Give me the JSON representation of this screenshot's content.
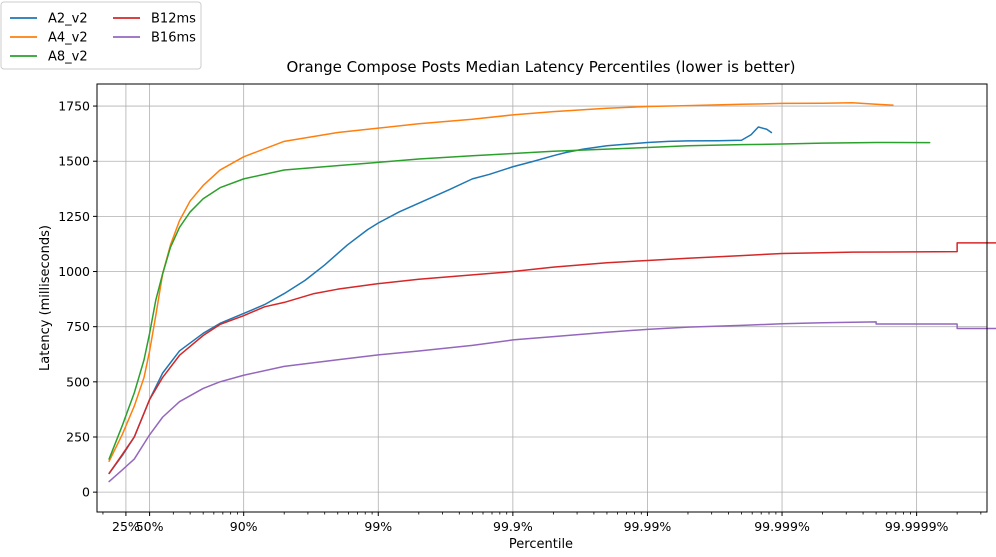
{
  "chart_data": {
    "type": "line",
    "title": "Orange Compose Posts Median Latency Percentiles (lower is better)",
    "xlabel": "Percentile",
    "ylabel": "Latency (milliseconds)",
    "x_scale": "log-of-inverse-percentile",
    "xlim_percentile": [
      -23,
      99.99997
    ],
    "ylim": [
      -90,
      1850
    ],
    "grid": true,
    "legend_position": "above-top-left",
    "legend_columns": 2,
    "x_ticks": [
      {
        "value": 25,
        "label": "25%"
      },
      {
        "value": 50,
        "label": "50%"
      },
      {
        "value": 90,
        "label": "90%"
      },
      {
        "value": 99,
        "label": "99%"
      },
      {
        "value": 99.9,
        "label": "99.9%"
      },
      {
        "value": 99.99,
        "label": "99.99%"
      },
      {
        "value": 99.999,
        "label": "99.999%"
      },
      {
        "value": 99.9999,
        "label": "99.9999%"
      }
    ],
    "y_ticks": [
      0,
      250,
      500,
      750,
      1000,
      1250,
      1500,
      1750
    ],
    "series": [
      {
        "name": "A2_v2",
        "color": "#1f77b4",
        "points": [
          [
            0,
            85
          ],
          [
            20,
            165
          ],
          [
            35,
            250
          ],
          [
            50,
            420
          ],
          [
            60,
            540
          ],
          [
            70,
            640
          ],
          [
            80,
            720
          ],
          [
            85,
            765
          ],
          [
            90,
            810
          ],
          [
            93,
            850
          ],
          [
            95,
            900
          ],
          [
            96.5,
            960
          ],
          [
            97.5,
            1030
          ],
          [
            98.3,
            1120
          ],
          [
            98.8,
            1190
          ],
          [
            99,
            1220
          ],
          [
            99.3,
            1270
          ],
          [
            99.5,
            1310
          ],
          [
            99.7,
            1370
          ],
          [
            99.8,
            1420
          ],
          [
            99.85,
            1440
          ],
          [
            99.9,
            1475
          ],
          [
            99.93,
            1500
          ],
          [
            99.95,
            1525
          ],
          [
            99.96,
            1540
          ],
          [
            99.97,
            1555
          ],
          [
            99.98,
            1570
          ],
          [
            99.99,
            1585
          ],
          [
            99.993,
            1590
          ],
          [
            99.995,
            1592
          ],
          [
            99.997,
            1593
          ],
          [
            99.998,
            1595
          ],
          [
            99.9983,
            1620
          ],
          [
            99.9985,
            1655
          ],
          [
            99.9987,
            1645
          ],
          [
            99.9988,
            1630
          ]
        ]
      },
      {
        "name": "A4_v2",
        "color": "#ff7f0e",
        "points": [
          [
            0,
            140
          ],
          [
            20,
            260
          ],
          [
            35,
            390
          ],
          [
            45,
            520
          ],
          [
            50,
            640
          ],
          [
            55,
            800
          ],
          [
            60,
            990
          ],
          [
            65,
            1120
          ],
          [
            70,
            1230
          ],
          [
            75,
            1320
          ],
          [
            80,
            1390
          ],
          [
            85,
            1460
          ],
          [
            90,
            1520
          ],
          [
            95,
            1590
          ],
          [
            98,
            1630
          ],
          [
            99,
            1650
          ],
          [
            99.5,
            1670
          ],
          [
            99.8,
            1690
          ],
          [
            99.9,
            1710
          ],
          [
            99.95,
            1725
          ],
          [
            99.98,
            1740
          ],
          [
            99.99,
            1748
          ],
          [
            99.995,
            1752
          ],
          [
            99.998,
            1758
          ],
          [
            99.999,
            1762
          ],
          [
            99.9995,
            1763
          ],
          [
            99.9997,
            1765
          ],
          [
            99.9998,
            1758
          ],
          [
            99.99985,
            1754
          ]
        ]
      },
      {
        "name": "A8_v2",
        "color": "#2ca02c",
        "points": [
          [
            0,
            150
          ],
          [
            20,
            300
          ],
          [
            35,
            450
          ],
          [
            45,
            600
          ],
          [
            50,
            720
          ],
          [
            55,
            870
          ],
          [
            60,
            990
          ],
          [
            65,
            1110
          ],
          [
            70,
            1200
          ],
          [
            75,
            1270
          ],
          [
            80,
            1330
          ],
          [
            85,
            1380
          ],
          [
            90,
            1420
          ],
          [
            95,
            1460
          ],
          [
            98,
            1480
          ],
          [
            99,
            1495
          ],
          [
            99.5,
            1510
          ],
          [
            99.8,
            1525
          ],
          [
            99.9,
            1535
          ],
          [
            99.95,
            1545
          ],
          [
            99.98,
            1555
          ],
          [
            99.99,
            1562
          ],
          [
            99.995,
            1570
          ],
          [
            99.998,
            1575
          ],
          [
            99.999,
            1578
          ],
          [
            99.9995,
            1582
          ],
          [
            99.9998,
            1585
          ],
          [
            99.99992,
            1584
          ]
        ]
      },
      {
        "name": "B12ms",
        "color": "#d62728",
        "points": [
          [
            0,
            85
          ],
          [
            20,
            170
          ],
          [
            35,
            250
          ],
          [
            50,
            420
          ],
          [
            60,
            520
          ],
          [
            70,
            620
          ],
          [
            80,
            710
          ],
          [
            85,
            760
          ],
          [
            90,
            800
          ],
          [
            93,
            840
          ],
          [
            95,
            860
          ],
          [
            97,
            900
          ],
          [
            98,
            920
          ],
          [
            99,
            945
          ],
          [
            99.5,
            965
          ],
          [
            99.8,
            985
          ],
          [
            99.9,
            1000
          ],
          [
            99.95,
            1020
          ],
          [
            99.98,
            1040
          ],
          [
            99.99,
            1050
          ],
          [
            99.995,
            1060
          ],
          [
            99.998,
            1072
          ],
          [
            99.999,
            1082
          ],
          [
            99.9995,
            1085
          ],
          [
            99.9997,
            1088
          ],
          [
            99.99995,
            1090
          ],
          [
            99.99995,
            1130
          ],
          [
            99.99999,
            1130
          ],
          [
            99.999995,
            1132
          ]
        ]
      },
      {
        "name": "B16ms",
        "color": "#9467bd",
        "points": [
          [
            0,
            48
          ],
          [
            20,
            100
          ],
          [
            35,
            150
          ],
          [
            50,
            260
          ],
          [
            60,
            340
          ],
          [
            70,
            410
          ],
          [
            80,
            470
          ],
          [
            85,
            500
          ],
          [
            90,
            530
          ],
          [
            95,
            570
          ],
          [
            98,
            600
          ],
          [
            99,
            622
          ],
          [
            99.5,
            640
          ],
          [
            99.8,
            665
          ],
          [
            99.9,
            690
          ],
          [
            99.95,
            705
          ],
          [
            99.98,
            725
          ],
          [
            99.99,
            738
          ],
          [
            99.995,
            748
          ],
          [
            99.998,
            756
          ],
          [
            99.999,
            763
          ],
          [
            99.9995,
            768
          ],
          [
            99.9998,
            772
          ],
          [
            99.9998,
            762
          ],
          [
            99.99995,
            762
          ],
          [
            99.99995,
            742
          ],
          [
            99.999995,
            742
          ],
          [
            99.999995,
            790
          ],
          [
            99.999995,
            650
          ]
        ]
      }
    ]
  }
}
